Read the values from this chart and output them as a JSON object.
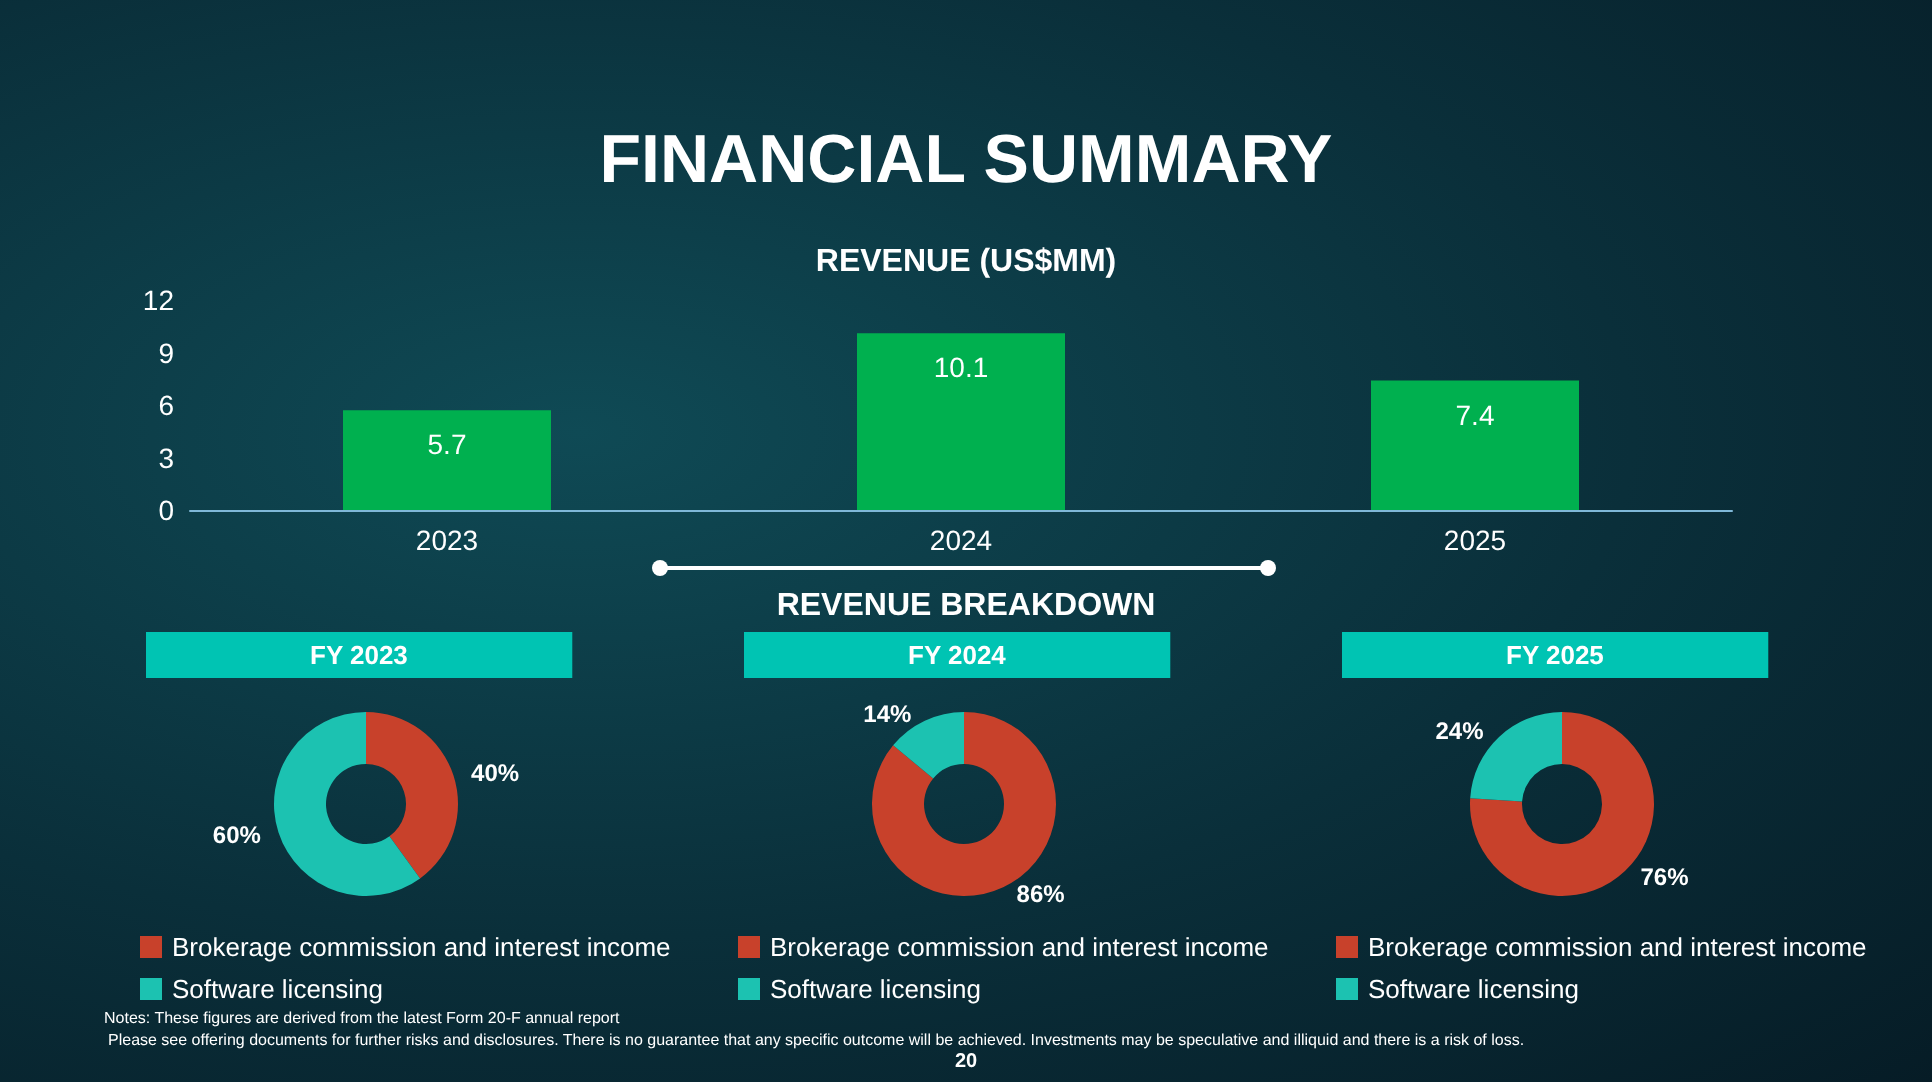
{
  "chart_data": [
    {
      "type": "bar",
      "title": "FINANCIAL SUMMARY",
      "subtitle": "REVENUE (US$MM)",
      "categories": [
        "2023",
        "2024",
        "2025"
      ],
      "values": [
        5.7,
        10.1,
        7.4
      ],
      "color": "#00b04f",
      "ylim": [
        0,
        12
      ],
      "yticks": [
        0,
        3,
        6,
        9,
        12
      ],
      "data_labels": true
    },
    {
      "type": "other",
      "title": "REVENUE BREAKDOWN"
    },
    {
      "type": "donut",
      "title": "FY 2023",
      "categories": [
        "Brokerage commission and interest income",
        "Software licensing"
      ],
      "values": [
        40,
        60
      ],
      "colors": [
        "#c8412b",
        "#1cc2b1"
      ],
      "value_labels": [
        "40%",
        "60%"
      ],
      "legend": "bottom"
    },
    {
      "type": "donut",
      "title": "FY 2024",
      "categories": [
        "Brokerage commission and interest income",
        "Software licensing"
      ],
      "values": [
        86,
        14
      ],
      "colors": [
        "#c8412b",
        "#1cc2b1"
      ],
      "value_labels": [
        "86%",
        "14%"
      ],
      "legend": "bottom"
    },
    {
      "type": "donut",
      "title": "FY 2025",
      "categories": [
        "Brokerage commission and interest income",
        "Software licensing"
      ],
      "values": [
        76,
        24
      ],
      "colors": [
        "#c8412b",
        "#1cc2b1"
      ],
      "value_labels": [
        "76%",
        "24%"
      ],
      "legend": "bottom"
    },
    {
      "type": "other",
      "annotations": [
        "Notes: These figures are derived from the latest Form 20-F annual report",
        "Please see offering documents for further risks and disclosures. There is no guarantee that any specific outcome will be achieved. Investments may be speculative and illiquid and there is a risk of loss.",
        "20"
      ]
    }
  ]
}
